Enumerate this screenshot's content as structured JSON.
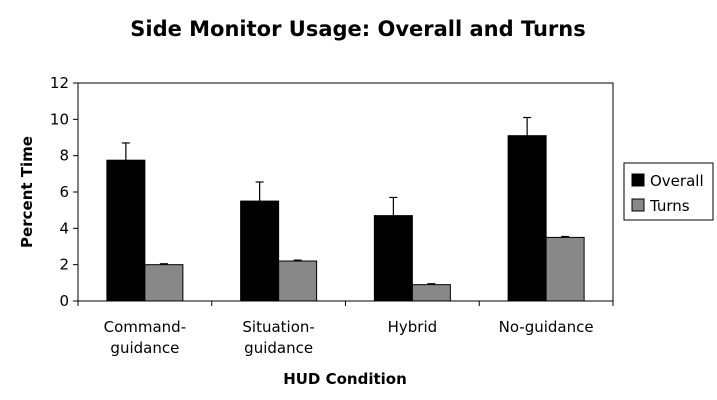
{
  "chart_data": {
    "type": "bar",
    "title": "Side Monitor Usage:  Overall and Turns",
    "xlabel": "HUD Condition",
    "ylabel": "Percent Time",
    "categories": [
      [
        "Command-",
        "guidance"
      ],
      [
        "Situation-",
        "guidance"
      ],
      [
        "Hybrid"
      ],
      [
        "No-guidance"
      ]
    ],
    "ylim": [
      0,
      12
    ],
    "yticks": [
      0,
      2,
      4,
      6,
      8,
      10,
      12
    ],
    "series": [
      {
        "name": "Overall",
        "color": "#000000",
        "values": [
          7.75,
          5.5,
          4.7,
          9.1
        ],
        "error": [
          0.95,
          1.05,
          1.0,
          1.0
        ]
      },
      {
        "name": "Turns",
        "color": "#888888",
        "values": [
          2.0,
          2.2,
          0.9,
          3.5
        ],
        "error": [
          0.05,
          0.05,
          0.05,
          0.05
        ]
      }
    ],
    "grid": false,
    "legend_position": "right"
  }
}
